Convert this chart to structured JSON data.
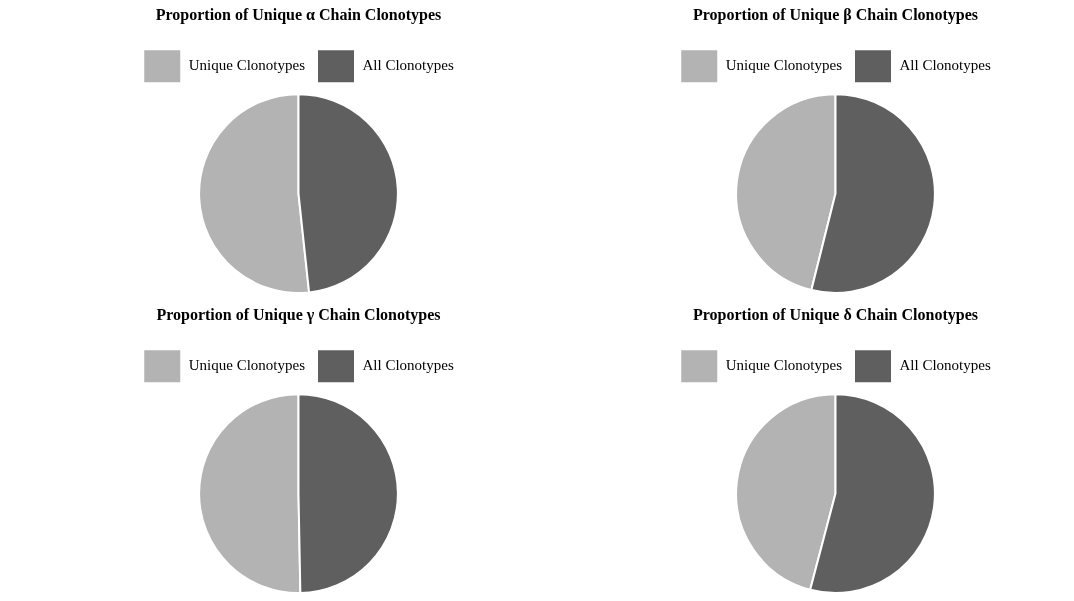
{
  "chart_data": [
    {
      "type": "pie",
      "title": "Proportion of Unique α Chain Clonotypes",
      "categories": [
        "Unique Clonotypes",
        "All Clonotypes"
      ],
      "values": [
        51.7,
        48.3
      ],
      "colors": [
        "#b3b3b3",
        "#5f5f5f"
      ],
      "legend": "top right"
    },
    {
      "type": "pie",
      "title": "Proportion of Unique β Chain Clonotypes",
      "categories": [
        "Unique Clonotypes",
        "All Clonotypes"
      ],
      "values": [
        46.1,
        53.9
      ],
      "colors": [
        "#b3b3b3",
        "#5f5f5f"
      ],
      "legend": "top right"
    },
    {
      "type": "pie",
      "title": "Proportion of Unique γ Chain Clonotypes",
      "categories": [
        "Unique Clonotypes",
        "All Clonotypes"
      ],
      "values": [
        50.3,
        49.7
      ],
      "colors": [
        "#b3b3b3",
        "#5f5f5f"
      ],
      "legend": "top right"
    },
    {
      "type": "pie",
      "title": "Proportion of Unique δ Chain Clonotypes",
      "categories": [
        "Unique Clonotypes",
        "All Clonotypes"
      ],
      "values": [
        45.9,
        54.1
      ],
      "colors": [
        "#b3b3b3",
        "#5f5f5f"
      ],
      "legend": "top right"
    }
  ]
}
